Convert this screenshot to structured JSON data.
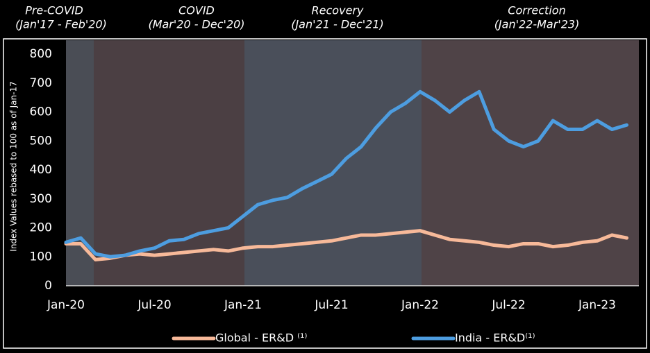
{
  "chart_data": {
    "type": "line",
    "periods": [
      "Pre-COVID",
      "(Jan'17 - Feb'20)",
      "COVID",
      "(Mar'20 - Dec'20)",
      "Recovery",
      "(Jan'21 - Dec'21)",
      "Correction",
      "(Jan'22-Mar'23)"
    ],
    "y_label": "Index Values rebased to 100 as of Jan-17",
    "categories": [
      "Jan-20",
      null,
      null,
      null,
      null,
      null,
      "Jul-20",
      null,
      null,
      null,
      null,
      null,
      "Jan-21",
      null,
      null,
      null,
      null,
      null,
      "Jul-21",
      null,
      null,
      null,
      null,
      null,
      "Jan-22",
      null,
      null,
      null,
      null,
      null,
      "Jul-22",
      null,
      null,
      null,
      null,
      null,
      "Jan-23",
      null,
      null
    ],
    "series": [
      {
        "name": "Global - ER&D ⁽¹⁾",
        "color": "#f7b999",
        "values": [
          145,
          145,
          90,
          95,
          105,
          110,
          105,
          110,
          115,
          120,
          125,
          120,
          130,
          135,
          135,
          140,
          145,
          150,
          155,
          165,
          175,
          175,
          180,
          185,
          190,
          175,
          160,
          155,
          150,
          140,
          135,
          145,
          145,
          135,
          140,
          150,
          155,
          175,
          165
        ]
      },
      {
        "name": "India - ER&D⁽¹⁾",
        "color": "#4d9de0",
        "values": [
          150,
          165,
          110,
          100,
          105,
          120,
          130,
          155,
          160,
          180,
          190,
          200,
          240,
          280,
          295,
          305,
          335,
          360,
          385,
          440,
          480,
          545,
          600,
          630,
          670,
          640,
          600,
          640,
          670,
          540,
          500,
          480,
          500,
          570,
          540,
          540,
          570,
          540,
          555
        ]
      }
    ],
    "ylim": [
      0,
      800
    ],
    "yticks": [
      0,
      100,
      200,
      300,
      400,
      500,
      600,
      700,
      800
    ]
  }
}
